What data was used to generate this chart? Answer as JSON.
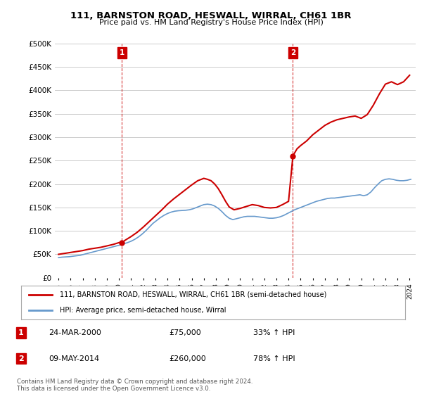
{
  "title": "111, BARNSTON ROAD, HESWALL, WIRRAL, CH61 1BR",
  "subtitle": "Price paid vs. HM Land Registry's House Price Index (HPI)",
  "ylim": [
    0,
    500000
  ],
  "yticks": [
    0,
    50000,
    100000,
    150000,
    200000,
    250000,
    300000,
    350000,
    400000,
    450000,
    500000
  ],
  "ytick_labels": [
    "£0",
    "£50K",
    "£100K",
    "£150K",
    "£200K",
    "£250K",
    "£300K",
    "£350K",
    "£400K",
    "£450K",
    "£500K"
  ],
  "xlim_start": 1994.7,
  "xlim_end": 2024.5,
  "xticks": [
    1995,
    1996,
    1997,
    1998,
    1999,
    2000,
    2001,
    2002,
    2003,
    2004,
    2005,
    2006,
    2007,
    2008,
    2009,
    2010,
    2011,
    2012,
    2013,
    2014,
    2015,
    2016,
    2017,
    2018,
    2019,
    2020,
    2021,
    2022,
    2023,
    2024
  ],
  "sale1_x": 2000.23,
  "sale1_y": 75000,
  "sale1_label": "1",
  "sale2_x": 2014.36,
  "sale2_y": 260000,
  "sale2_label": "2",
  "red_line_color": "#cc0000",
  "blue_line_color": "#6699cc",
  "marker_box_color": "#cc0000",
  "background_color": "#ffffff",
  "grid_color": "#cccccc",
  "legend_label_red": "111, BARNSTON ROAD, HESWALL, WIRRAL, CH61 1BR (semi-detached house)",
  "legend_label_blue": "HPI: Average price, semi-detached house, Wirral",
  "table_row1": [
    "1",
    "24-MAR-2000",
    "£75,000",
    "33% ↑ HPI"
  ],
  "table_row2": [
    "2",
    "09-MAY-2014",
    "£260,000",
    "78% ↑ HPI"
  ],
  "footer": "Contains HM Land Registry data © Crown copyright and database right 2024.\nThis data is licensed under the Open Government Licence v3.0.",
  "hpi_years": [
    1995.0,
    1995.3,
    1995.6,
    1995.9,
    1996.2,
    1996.5,
    1996.8,
    1997.1,
    1997.4,
    1997.7,
    1998.0,
    1998.3,
    1998.6,
    1998.9,
    1999.2,
    1999.5,
    1999.8,
    2000.1,
    2000.4,
    2000.7,
    2001.0,
    2001.3,
    2001.6,
    2001.9,
    2002.2,
    2002.5,
    2002.8,
    2003.1,
    2003.4,
    2003.7,
    2004.0,
    2004.3,
    2004.6,
    2004.9,
    2005.2,
    2005.5,
    2005.8,
    2006.1,
    2006.4,
    2006.7,
    2007.0,
    2007.3,
    2007.6,
    2007.9,
    2008.2,
    2008.5,
    2008.8,
    2009.1,
    2009.4,
    2009.7,
    2010.0,
    2010.3,
    2010.6,
    2010.9,
    2011.2,
    2011.5,
    2011.8,
    2012.1,
    2012.4,
    2012.7,
    2013.0,
    2013.3,
    2013.6,
    2013.9,
    2014.2,
    2014.5,
    2014.8,
    2015.1,
    2015.4,
    2015.7,
    2016.0,
    2016.3,
    2016.6,
    2016.9,
    2017.2,
    2017.5,
    2017.8,
    2018.1,
    2018.4,
    2018.7,
    2019.0,
    2019.3,
    2019.6,
    2019.9,
    2020.2,
    2020.5,
    2020.8,
    2021.1,
    2021.4,
    2021.7,
    2022.0,
    2022.3,
    2022.6,
    2022.9,
    2023.2,
    2023.5,
    2023.8,
    2024.1
  ],
  "hpi_values": [
    43000,
    44000,
    44500,
    45000,
    46000,
    47000,
    48000,
    50000,
    52000,
    54000,
    56000,
    58000,
    60000,
    62000,
    64000,
    66000,
    68000,
    70000,
    72500,
    75000,
    78000,
    82000,
    87000,
    93000,
    100000,
    108000,
    116000,
    122000,
    128000,
    133000,
    137000,
    140000,
    142000,
    143000,
    143500,
    144000,
    145000,
    147000,
    150000,
    153000,
    156000,
    157000,
    156000,
    153000,
    148000,
    141000,
    133000,
    127000,
    124000,
    126000,
    128000,
    130000,
    131000,
    131000,
    131000,
    130000,
    129000,
    128000,
    127000,
    127000,
    128000,
    130000,
    133000,
    137000,
    141000,
    145000,
    148000,
    151000,
    154000,
    157000,
    160000,
    163000,
    165000,
    167000,
    169000,
    170000,
    170000,
    171000,
    172000,
    173000,
    174000,
    175000,
    176000,
    177000,
    175000,
    177000,
    183000,
    192000,
    200000,
    207000,
    210000,
    211000,
    210000,
    208000,
    207000,
    207000,
    208000,
    210000
  ],
  "red_years": [
    1995.0,
    1995.5,
    1996.0,
    1996.5,
    1997.0,
    1997.5,
    1998.0,
    1998.5,
    1999.0,
    1999.5,
    2000.0,
    2000.23,
    2000.5,
    2001.0,
    2001.5,
    2002.0,
    2002.5,
    2003.0,
    2003.5,
    2004.0,
    2004.5,
    2005.0,
    2005.5,
    2006.0,
    2006.5,
    2007.0,
    2007.3,
    2007.6,
    2007.9,
    2008.2,
    2008.5,
    2008.8,
    2009.1,
    2009.5,
    2010.0,
    2010.5,
    2011.0,
    2011.5,
    2012.0,
    2012.5,
    2013.0,
    2013.5,
    2014.0,
    2014.36,
    2014.7,
    2015.0,
    2015.5,
    2016.0,
    2016.5,
    2017.0,
    2017.5,
    2018.0,
    2018.5,
    2019.0,
    2019.5,
    2020.0,
    2020.5,
    2021.0,
    2021.5,
    2022.0,
    2022.5,
    2023.0,
    2023.5,
    2024.0
  ],
  "red_values": [
    50000,
    52000,
    54000,
    56000,
    58000,
    61000,
    63000,
    65000,
    68000,
    71000,
    75000,
    75000,
    80000,
    88000,
    97000,
    108000,
    120000,
    132000,
    144000,
    157000,
    168000,
    178000,
    188000,
    198000,
    207000,
    212000,
    210000,
    207000,
    200000,
    190000,
    177000,
    163000,
    151000,
    145000,
    148000,
    152000,
    156000,
    154000,
    150000,
    149000,
    150000,
    156000,
    163000,
    260000,
    275000,
    282000,
    292000,
    305000,
    315000,
    325000,
    332000,
    337000,
    340000,
    343000,
    345000,
    340000,
    348000,
    368000,
    392000,
    413000,
    418000,
    412000,
    418000,
    432000
  ]
}
